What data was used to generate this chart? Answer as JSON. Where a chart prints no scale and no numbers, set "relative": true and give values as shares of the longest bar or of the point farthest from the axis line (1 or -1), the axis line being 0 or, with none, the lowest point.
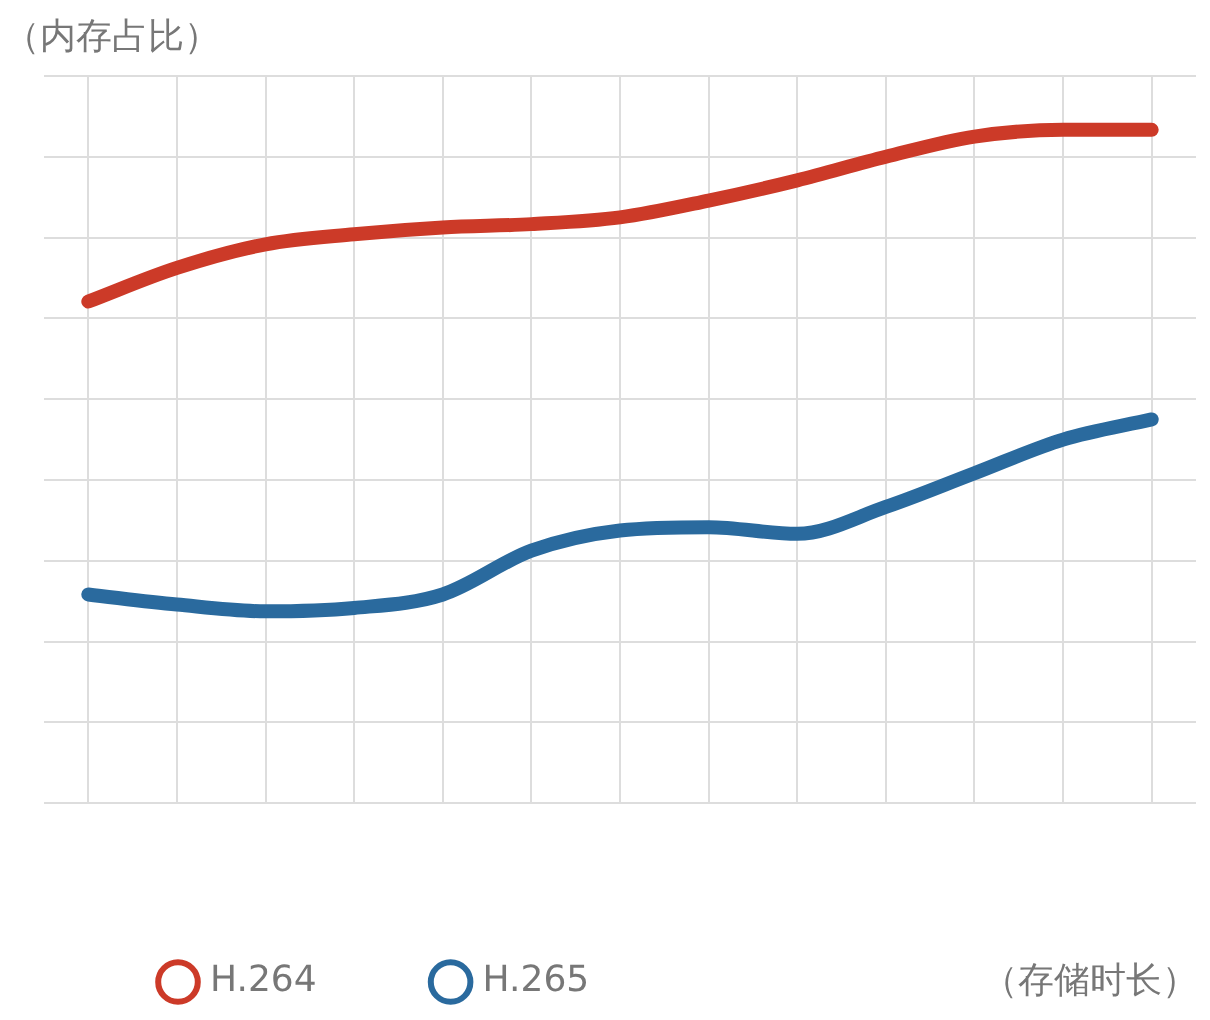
{
  "chart_data": {
    "type": "line",
    "relative": true,
    "ylabel": "（内存占比）",
    "xlabel": "（存储时长）",
    "categories": [
      null,
      null,
      null,
      null,
      null,
      null,
      null,
      null,
      null,
      null,
      null,
      null,
      null
    ],
    "grid": true,
    "legend": "bottom",
    "marker": "none",
    "line_style": "solid",
    "series": [
      {
        "name": "H.264",
        "color": "#cc3a28",
        "values": [
          0.745,
          0.795,
          0.83,
          0.845,
          0.855,
          0.86,
          0.87,
          0.895,
          0.925,
          0.96,
          0.99,
          1.0,
          1.0
        ]
      },
      {
        "name": "H.265",
        "color": "#2a6a9e",
        "values": [
          0.31,
          0.295,
          0.285,
          0.29,
          0.31,
          0.375,
          0.405,
          0.41,
          0.4,
          0.44,
          0.49,
          0.54,
          0.57
        ]
      }
    ]
  }
}
